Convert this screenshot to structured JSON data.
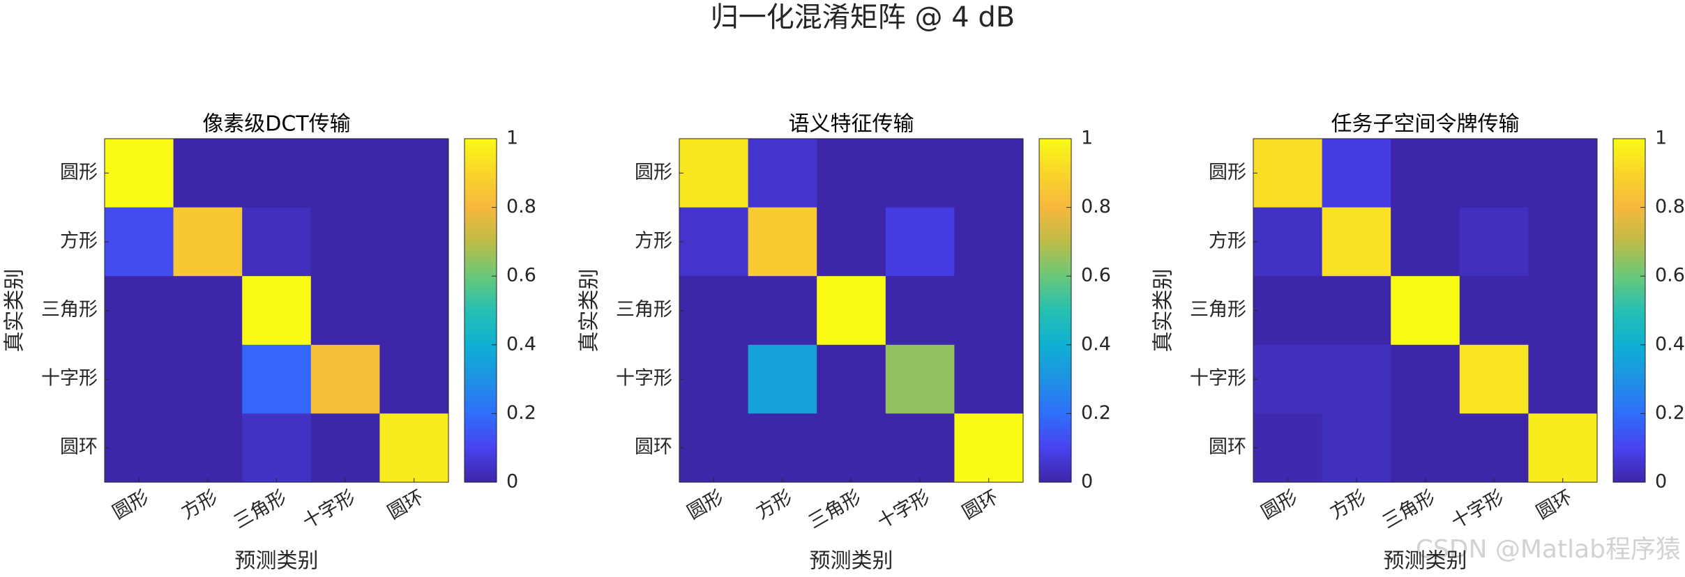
{
  "title": "归一化混淆矩阵 @ 4 dB",
  "watermark": "CSDN @Matlab程序猿",
  "colormap": [
    "#3e26a8",
    "#4743ef",
    "#2f6ffb",
    "#1e92e3",
    "#0fb0d3",
    "#26bfb0",
    "#6ac879",
    "#bebc48",
    "#f7b83e",
    "#f9d52a",
    "#f9fb15"
  ],
  "chart_data": [
    {
      "type": "heatmap",
      "title": "像素级DCT传输",
      "x_label": "预测类别",
      "y_label": "真实类别",
      "x_categories": [
        "圆形",
        "方形",
        "三角形",
        "十字形",
        "圆环"
      ],
      "y_categories": [
        "圆形",
        "方形",
        "三角形",
        "十字形",
        "圆环"
      ],
      "values": [
        [
          1,
          0,
          0,
          0,
          0
        ],
        [
          0.12,
          0.85,
          0.03,
          0,
          0
        ],
        [
          0,
          0,
          1,
          0,
          0
        ],
        [
          0,
          0,
          0.18,
          0.82,
          0
        ],
        [
          0,
          0,
          0.04,
          0,
          0.96
        ]
      ],
      "clim": [
        0,
        1
      ],
      "cticks": [
        0,
        0.2,
        0.4,
        0.6,
        0.8,
        1
      ]
    },
    {
      "type": "heatmap",
      "title": "语义特征传输",
      "x_label": "预测类别",
      "y_label": "真实类别",
      "x_categories": [
        "圆形",
        "方形",
        "三角形",
        "十字形",
        "圆环"
      ],
      "y_categories": [
        "圆形",
        "方形",
        "三角形",
        "十字形",
        "圆环"
      ],
      "values": [
        [
          0.95,
          0.05,
          0,
          0,
          0
        ],
        [
          0.05,
          0.87,
          0,
          0.08,
          0
        ],
        [
          0,
          0,
          1,
          0,
          0
        ],
        [
          0,
          0.35,
          0,
          0.65,
          0
        ],
        [
          0,
          0,
          0,
          0,
          1
        ]
      ],
      "clim": [
        0,
        1
      ],
      "cticks": [
        0,
        0.2,
        0.4,
        0.6,
        0.8,
        1
      ]
    },
    {
      "type": "heatmap",
      "title": "任务子空间令牌传输",
      "x_label": "预测类别",
      "y_label": "真实类别",
      "x_categories": [
        "圆形",
        "方形",
        "三角形",
        "十字形",
        "圆环"
      ],
      "y_categories": [
        "圆形",
        "方形",
        "三角形",
        "十字形",
        "圆环"
      ],
      "values": [
        [
          0.92,
          0.08,
          0,
          0,
          0
        ],
        [
          0.04,
          0.93,
          0,
          0.03,
          0
        ],
        [
          0,
          0,
          1,
          0,
          0
        ],
        [
          0.03,
          0.03,
          0,
          0.94,
          0
        ],
        [
          0.01,
          0.03,
          0,
          0,
          0.96
        ]
      ],
      "clim": [
        0,
        1
      ],
      "cticks": [
        0,
        0.2,
        0.4,
        0.6,
        0.8,
        1
      ]
    }
  ]
}
